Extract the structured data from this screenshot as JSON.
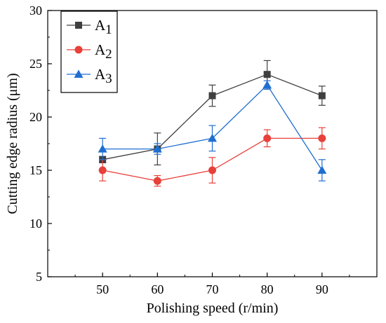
{
  "chart_data": {
    "type": "line",
    "title": "",
    "xlabel": "Polishing speed (r/min)",
    "ylabel": "Cutting edge radius (μm)",
    "x": [
      50,
      60,
      70,
      80,
      90
    ],
    "x_ticks": [
      "50",
      "60",
      "70",
      "80",
      "90"
    ],
    "xlim": [
      40,
      100
    ],
    "ylim": [
      5,
      30
    ],
    "y_ticks": [
      "5",
      "10",
      "15",
      "20",
      "25",
      "30"
    ],
    "grid": false,
    "legend_position": "top-left",
    "series": [
      {
        "name": "A1",
        "name_base": "A",
        "name_sub": "1",
        "color": "#3f3f3f",
        "marker": "square",
        "values": [
          16,
          17,
          22,
          24,
          22
        ],
        "errors": [
          0.3,
          1.5,
          1.0,
          1.3,
          0.9
        ]
      },
      {
        "name": "A2",
        "name_base": "A",
        "name_sub": "2",
        "color": "#e8403a",
        "marker": "circle",
        "values": [
          15,
          14,
          15,
          18,
          18
        ],
        "errors": [
          1.0,
          0.5,
          1.2,
          0.8,
          1.0
        ]
      },
      {
        "name": "A3",
        "name_base": "A",
        "name_sub": "3",
        "color": "#1f6fd0",
        "marker": "triangle",
        "values": [
          17,
          17,
          18,
          23,
          15
        ],
        "errors": [
          1.0,
          0.5,
          1.2,
          0.4,
          1.0
        ]
      }
    ]
  }
}
